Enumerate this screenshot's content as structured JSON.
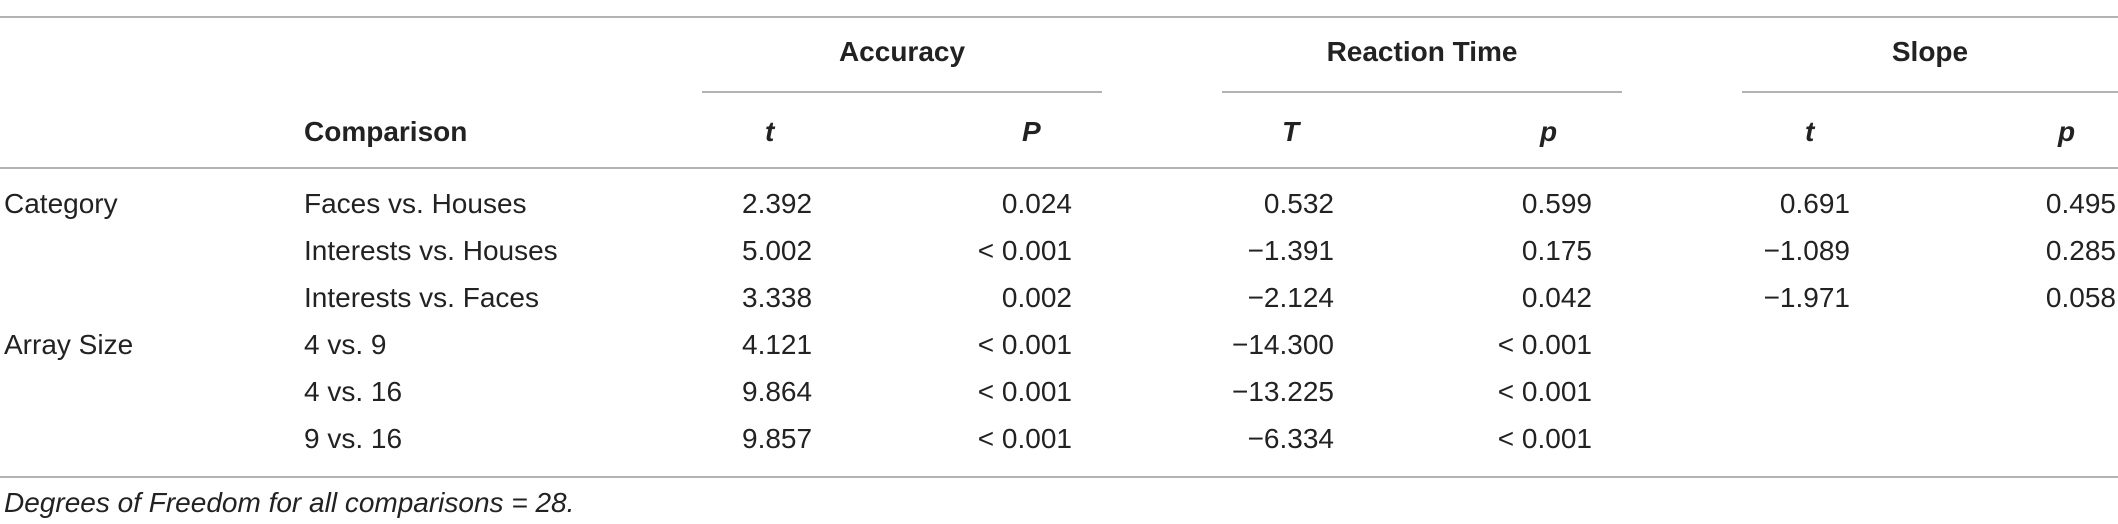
{
  "table": {
    "groups": {
      "accuracy": "Accuracy",
      "reaction_time": "Reaction Time",
      "slope": "Slope"
    },
    "columns": {
      "comparison": "Comparison",
      "acc_t": "t",
      "acc_p": "P",
      "rt_t": "T",
      "rt_p": "p",
      "slope_t": "t",
      "slope_p": "p"
    },
    "rows": [
      {
        "factor": "Category",
        "comparison": "Faces vs. Houses",
        "acc_t": "2.392",
        "acc_p": "0.024",
        "rt_t": "0.532",
        "rt_p": "0.599",
        "slope_t": "0.691",
        "slope_p": "0.495"
      },
      {
        "factor": "",
        "comparison": "Interests vs. Houses",
        "acc_t": "5.002",
        "acc_p": "< 0.001",
        "rt_t": "−1.391",
        "rt_p": "0.175",
        "slope_t": "−1.089",
        "slope_p": "0.285"
      },
      {
        "factor": "",
        "comparison": "Interests vs. Faces",
        "acc_t": "3.338",
        "acc_p": "0.002",
        "rt_t": "−2.124",
        "rt_p": "0.042",
        "slope_t": "−1.971",
        "slope_p": "0.058"
      },
      {
        "factor": "Array Size",
        "comparison": "4 vs. 9",
        "acc_t": "4.121",
        "acc_p": "< 0.001",
        "rt_t": "−14.300",
        "rt_p": "< 0.001",
        "slope_t": "",
        "slope_p": ""
      },
      {
        "factor": "",
        "comparison": "4 vs. 16",
        "acc_t": "9.864",
        "acc_p": "< 0.001",
        "rt_t": "−13.225",
        "rt_p": "< 0.001",
        "slope_t": "",
        "slope_p": ""
      },
      {
        "factor": "",
        "comparison": "9 vs. 16",
        "acc_t": "9.857",
        "acc_p": "< 0.001",
        "rt_t": "−6.334",
        "rt_p": "< 0.001",
        "slope_t": "",
        "slope_p": ""
      }
    ],
    "footnote": "Degrees of Freedom for all comparisons = 28."
  }
}
